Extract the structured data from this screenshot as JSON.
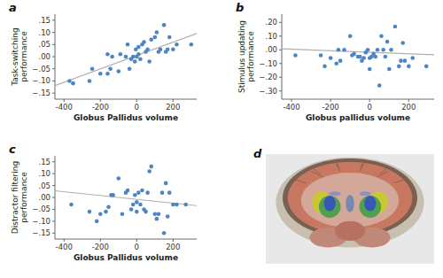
{
  "chart_data": [
    {
      "type": "scatter",
      "title": "a",
      "x_label": "Globus Pallidus volume",
      "y_label": "Task-switching\nperformance",
      "xlim": [
        -450,
        330
      ],
      "ylim": [
        -0.175,
        0.175
      ],
      "xticks": [
        -400,
        -200,
        0,
        200
      ],
      "yticks": [
        {
          "value": -0.15,
          "label": "−.15"
        },
        {
          "value": -0.1,
          "label": "−.10"
        },
        {
          "value": -0.05,
          "label": "−.05"
        },
        {
          "value": 0.0,
          "label": ".00"
        },
        {
          "value": 0.05,
          "label": ".05"
        },
        {
          "value": 0.1,
          "label": ".10"
        },
        {
          "value": 0.15,
          "label": ".15"
        }
      ],
      "series": [
        {
          "type": "scatter",
          "color": "#4d85c3",
          "x": [
            -370,
            -350,
            -260,
            -245,
            -200,
            -160,
            -160,
            -145,
            -135,
            -100,
            -90,
            -60,
            -50,
            -40,
            -30,
            -20,
            -10,
            -5,
            0,
            10,
            10,
            20,
            30,
            40,
            50,
            60,
            70,
            80,
            100,
            110,
            120,
            130,
            150,
            160,
            170,
            180,
            200,
            220,
            300
          ],
          "values": [
            -0.1,
            -0.11,
            -0.1,
            -0.05,
            -0.07,
            -0.07,
            0.01,
            -0.05,
            0.0,
            -0.06,
            0.01,
            0.0,
            0.05,
            -0.05,
            -0.01,
            0.0,
            -0.02,
            0.03,
            0.0,
            0.01,
            0.04,
            -0.01,
            0.05,
            0.06,
            0.02,
            0.03,
            -0.02,
            0.07,
            0.08,
            0.1,
            0.02,
            0.03,
            0.13,
            0.02,
            0.03,
            0.08,
            0.03,
            0.05,
            0.05
          ]
        },
        {
          "type": "line",
          "color": "#b0b0b0",
          "x": [
            -450,
            330
          ],
          "values": [
            -0.11875,
            0.09575
          ]
        }
      ]
    },
    {
      "type": "scatter",
      "title": "b",
      "x_label": "Globus pallidus volume",
      "y_label": "Stimulus updating\nperformance",
      "xlim": [
        -450,
        330
      ],
      "ylim": [
        -0.36,
        0.26
      ],
      "xticks": [
        -400,
        -200,
        0,
        200
      ],
      "yticks": [
        {
          "value": -0.3,
          "label": "−.30"
        },
        {
          "value": -0.2,
          "label": "−.20"
        },
        {
          "value": -0.1,
          "label": "−.10"
        },
        {
          "value": 0.0,
          "label": ".00"
        },
        {
          "value": 0.1,
          "label": ".10"
        },
        {
          "value": 0.2,
          "label": ".20"
        }
      ],
      "series": [
        {
          "type": "scatter",
          "color": "#4d85c3",
          "x": [
            -380,
            -250,
            -230,
            -200,
            -170,
            -160,
            -150,
            -130,
            -100,
            -90,
            -80,
            -60,
            -50,
            -40,
            -30,
            -20,
            -10,
            0,
            0,
            10,
            20,
            30,
            40,
            50,
            60,
            70,
            80,
            90,
            100,
            110,
            130,
            150,
            160,
            170,
            180,
            200,
            220,
            290
          ],
          "values": [
            -0.04,
            -0.04,
            -0.12,
            -0.06,
            -0.1,
            0.0,
            -0.08,
            0.0,
            0.1,
            -0.04,
            -0.03,
            -0.05,
            -0.05,
            -0.08,
            -0.06,
            -0.02,
            0.0,
            -0.14,
            -0.06,
            -0.05,
            -0.03,
            -0.05,
            0.0,
            -0.26,
            0.1,
            0.0,
            -0.05,
            0.06,
            -0.14,
            0.0,
            0.17,
            -0.12,
            -0.08,
            0.05,
            -0.08,
            -0.12,
            -0.06,
            -0.12
          ]
        },
        {
          "type": "line",
          "color": "#b0b0b0",
          "x": [
            -450,
            330
          ],
          "values": [
            0.00675,
            -0.03615
          ]
        }
      ]
    },
    {
      "type": "scatter",
      "title": "c",
      "x_label": "Globus Pallidus volume",
      "y_label": "Distractor filtering\nperformance",
      "xlim": [
        -450,
        330
      ],
      "ylim": [
        -0.175,
        0.175
      ],
      "xticks": [
        -400,
        -200,
        0,
        200
      ],
      "yticks": [
        {
          "value": -0.15,
          "label": "−.15"
        },
        {
          "value": -0.1,
          "label": "−.10"
        },
        {
          "value": -0.05,
          "label": "−.05"
        },
        {
          "value": 0.0,
          "label": ".00"
        },
        {
          "value": 0.05,
          "label": ".05"
        },
        {
          "value": 0.1,
          "label": ".10"
        },
        {
          "value": 0.15,
          "label": ".15"
        }
      ],
      "series": [
        {
          "type": "scatter",
          "color": "#4d85c3",
          "x": [
            -360,
            -260,
            -220,
            -200,
            -170,
            -155,
            -140,
            -130,
            -100,
            -80,
            -60,
            -50,
            -30,
            -20,
            -10,
            0,
            0,
            10,
            20,
            30,
            40,
            50,
            60,
            70,
            80,
            100,
            110,
            120,
            140,
            150,
            160,
            170,
            180,
            200,
            220,
            270
          ],
          "values": [
            -0.03,
            -0.06,
            -0.1,
            -0.07,
            -0.06,
            -0.04,
            0.01,
            0.01,
            0.08,
            -0.07,
            0.02,
            0.03,
            -0.05,
            -0.03,
            0.01,
            -0.06,
            -0.02,
            0.02,
            -0.03,
            0.03,
            -0.05,
            -0.06,
            0.02,
            0.11,
            0.13,
            -0.07,
            -0.09,
            -0.07,
            0.02,
            -0.15,
            0.06,
            -0.08,
            0.02,
            -0.03,
            -0.03,
            -0.03
          ]
        },
        {
          "type": "line",
          "color": "#b0b0b0",
          "x": [
            -450,
            330
          ],
          "values": [
            0.028,
            -0.0344
          ]
        }
      ]
    },
    {
      "type": "illustration",
      "title": "d"
    }
  ]
}
